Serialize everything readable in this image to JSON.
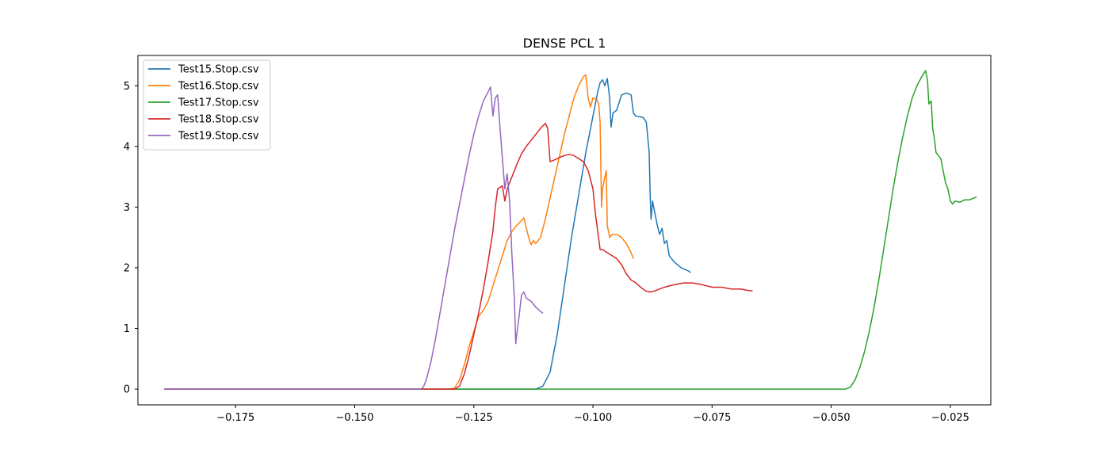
{
  "chart_data": {
    "type": "line",
    "title": "DENSE PCL 1",
    "xlabel": "",
    "ylabel": "",
    "xlim": [
      -0.1955,
      -0.0165
    ],
    "ylim": [
      -0.26,
      5.5
    ],
    "x_ticks": [
      -0.175,
      -0.15,
      -0.125,
      -0.1,
      -0.075,
      -0.05,
      -0.025
    ],
    "x_tick_labels": [
      "−0.175",
      "−0.150",
      "−0.125",
      "−0.100",
      "−0.075",
      "−0.050",
      "−0.025"
    ],
    "y_ticks": [
      0,
      1,
      2,
      3,
      4,
      5
    ],
    "y_tick_labels": [
      "0",
      "1",
      "2",
      "3",
      "4",
      "5"
    ],
    "grid": false,
    "legend_position": "top-left",
    "series": [
      {
        "name": "Test15.Stop.csv",
        "color": "#1f77b4",
        "points": [
          [
            -0.19,
            0
          ],
          [
            -0.112,
            0
          ],
          [
            -0.1105,
            0.05
          ],
          [
            -0.109,
            0.28
          ],
          [
            -0.1075,
            0.9
          ],
          [
            -0.106,
            1.7
          ],
          [
            -0.1045,
            2.5
          ],
          [
            -0.103,
            3.2
          ],
          [
            -0.1015,
            3.9
          ],
          [
            -0.1,
            4.5
          ],
          [
            -0.099,
            4.9
          ],
          [
            -0.0985,
            5.05
          ],
          [
            -0.098,
            5.1
          ],
          [
            -0.0975,
            5.0
          ],
          [
            -0.097,
            5.12
          ],
          [
            -0.0965,
            4.8
          ],
          [
            -0.0962,
            4.32
          ],
          [
            -0.0958,
            4.55
          ],
          [
            -0.095,
            4.6
          ],
          [
            -0.094,
            4.85
          ],
          [
            -0.093,
            4.88
          ],
          [
            -0.092,
            4.85
          ],
          [
            -0.0915,
            4.55
          ],
          [
            -0.091,
            4.5
          ],
          [
            -0.0895,
            4.48
          ],
          [
            -0.0888,
            4.4
          ],
          [
            -0.0882,
            3.9
          ],
          [
            -0.088,
            3.2
          ],
          [
            -0.0878,
            2.8
          ],
          [
            -0.0875,
            3.1
          ],
          [
            -0.087,
            2.9
          ],
          [
            -0.0865,
            2.7
          ],
          [
            -0.086,
            2.55
          ],
          [
            -0.0855,
            2.65
          ],
          [
            -0.085,
            2.4
          ],
          [
            -0.0845,
            2.45
          ],
          [
            -0.084,
            2.2
          ],
          [
            -0.083,
            2.1
          ],
          [
            -0.0815,
            2.0
          ],
          [
            -0.08,
            1.95
          ],
          [
            -0.0795,
            1.92
          ]
        ]
      },
      {
        "name": "Test16.Stop.csv",
        "color": "#ff7f0e",
        "points": [
          [
            -0.19,
            0
          ],
          [
            -0.13,
            0
          ],
          [
            -0.129,
            0.02
          ],
          [
            -0.128,
            0.15
          ],
          [
            -0.127,
            0.4
          ],
          [
            -0.126,
            0.7
          ],
          [
            -0.125,
            0.95
          ],
          [
            -0.124,
            1.2
          ],
          [
            -0.123,
            1.3
          ],
          [
            -0.122,
            1.45
          ],
          [
            -0.121,
            1.7
          ],
          [
            -0.12,
            1.95
          ],
          [
            -0.119,
            2.2
          ],
          [
            -0.118,
            2.45
          ],
          [
            -0.117,
            2.6
          ],
          [
            -0.116,
            2.7
          ],
          [
            -0.115,
            2.78
          ],
          [
            -0.1145,
            2.82
          ],
          [
            -0.1135,
            2.5
          ],
          [
            -0.113,
            2.38
          ],
          [
            -0.1125,
            2.45
          ],
          [
            -0.112,
            2.4
          ],
          [
            -0.111,
            2.5
          ],
          [
            -0.11,
            2.8
          ],
          [
            -0.109,
            3.15
          ],
          [
            -0.108,
            3.5
          ],
          [
            -0.107,
            3.85
          ],
          [
            -0.106,
            4.2
          ],
          [
            -0.105,
            4.5
          ],
          [
            -0.104,
            4.8
          ],
          [
            -0.103,
            5.0
          ],
          [
            -0.102,
            5.15
          ],
          [
            -0.1015,
            5.18
          ],
          [
            -0.101,
            4.8
          ],
          [
            -0.1005,
            4.65
          ],
          [
            -0.1,
            4.8
          ],
          [
            -0.0992,
            4.78
          ],
          [
            -0.0988,
            4.7
          ],
          [
            -0.0985,
            4.4
          ],
          [
            -0.0982,
            3.0
          ],
          [
            -0.098,
            3.3
          ],
          [
            -0.0975,
            3.5
          ],
          [
            -0.0972,
            3.6
          ],
          [
            -0.097,
            2.7
          ],
          [
            -0.0965,
            2.5
          ],
          [
            -0.096,
            2.55
          ],
          [
            -0.095,
            2.55
          ],
          [
            -0.094,
            2.5
          ],
          [
            -0.093,
            2.4
          ],
          [
            -0.092,
            2.25
          ],
          [
            -0.0915,
            2.15
          ]
        ]
      },
      {
        "name": "Test17.Stop.csv",
        "color": "#2ca02c",
        "points": [
          [
            -0.19,
            0
          ],
          [
            -0.047,
            0
          ],
          [
            -0.046,
            0.03
          ],
          [
            -0.045,
            0.15
          ],
          [
            -0.044,
            0.35
          ],
          [
            -0.043,
            0.62
          ],
          [
            -0.042,
            0.95
          ],
          [
            -0.041,
            1.35
          ],
          [
            -0.04,
            1.8
          ],
          [
            -0.039,
            2.3
          ],
          [
            -0.038,
            2.8
          ],
          [
            -0.037,
            3.3
          ],
          [
            -0.036,
            3.75
          ],
          [
            -0.035,
            4.15
          ],
          [
            -0.034,
            4.5
          ],
          [
            -0.033,
            4.8
          ],
          [
            -0.032,
            5.0
          ],
          [
            -0.031,
            5.15
          ],
          [
            -0.0302,
            5.25
          ],
          [
            -0.0298,
            5.1
          ],
          [
            -0.0295,
            4.7
          ],
          [
            -0.029,
            4.75
          ],
          [
            -0.0287,
            4.3
          ],
          [
            -0.0283,
            4.1
          ],
          [
            -0.028,
            3.9
          ],
          [
            -0.027,
            3.8
          ],
          [
            -0.0265,
            3.6
          ],
          [
            -0.026,
            3.4
          ],
          [
            -0.0255,
            3.3
          ],
          [
            -0.025,
            3.1
          ],
          [
            -0.0245,
            3.05
          ],
          [
            -0.024,
            3.1
          ],
          [
            -0.023,
            3.08
          ],
          [
            -0.022,
            3.12
          ],
          [
            -0.021,
            3.12
          ],
          [
            -0.02,
            3.15
          ],
          [
            -0.0195,
            3.17
          ]
        ]
      },
      {
        "name": "Test18.Stop.csv",
        "color": "#d62728",
        "points": [
          [
            -0.19,
            0
          ],
          [
            -0.129,
            0
          ],
          [
            -0.128,
            0.05
          ],
          [
            -0.127,
            0.25
          ],
          [
            -0.126,
            0.55
          ],
          [
            -0.125,
            0.9
          ],
          [
            -0.124,
            1.25
          ],
          [
            -0.123,
            1.65
          ],
          [
            -0.122,
            2.1
          ],
          [
            -0.121,
            2.6
          ],
          [
            -0.1205,
            3.0
          ],
          [
            -0.12,
            3.3
          ],
          [
            -0.119,
            3.35
          ],
          [
            -0.1185,
            3.1
          ],
          [
            -0.118,
            3.3
          ],
          [
            -0.117,
            3.5
          ],
          [
            -0.116,
            3.7
          ],
          [
            -0.115,
            3.88
          ],
          [
            -0.114,
            4.0
          ],
          [
            -0.113,
            4.1
          ],
          [
            -0.112,
            4.2
          ],
          [
            -0.111,
            4.3
          ],
          [
            -0.11,
            4.38
          ],
          [
            -0.1095,
            4.3
          ],
          [
            -0.109,
            3.75
          ],
          [
            -0.108,
            3.78
          ],
          [
            -0.107,
            3.82
          ],
          [
            -0.106,
            3.85
          ],
          [
            -0.105,
            3.87
          ],
          [
            -0.104,
            3.85
          ],
          [
            -0.103,
            3.8
          ],
          [
            -0.102,
            3.75
          ],
          [
            -0.101,
            3.6
          ],
          [
            -0.1,
            3.3
          ],
          [
            -0.0995,
            2.9
          ],
          [
            -0.099,
            2.6
          ],
          [
            -0.0985,
            2.3
          ],
          [
            -0.098,
            2.3
          ],
          [
            -0.097,
            2.25
          ],
          [
            -0.096,
            2.2
          ],
          [
            -0.095,
            2.15
          ],
          [
            -0.094,
            2.05
          ],
          [
            -0.093,
            1.9
          ],
          [
            -0.092,
            1.8
          ],
          [
            -0.091,
            1.75
          ],
          [
            -0.09,
            1.68
          ],
          [
            -0.089,
            1.62
          ],
          [
            -0.088,
            1.6
          ],
          [
            -0.087,
            1.62
          ],
          [
            -0.085,
            1.68
          ],
          [
            -0.083,
            1.72
          ],
          [
            -0.081,
            1.75
          ],
          [
            -0.079,
            1.75
          ],
          [
            -0.077,
            1.72
          ],
          [
            -0.075,
            1.68
          ],
          [
            -0.073,
            1.68
          ],
          [
            -0.071,
            1.65
          ],
          [
            -0.069,
            1.65
          ],
          [
            -0.067,
            1.62
          ],
          [
            -0.0665,
            1.62
          ]
        ]
      },
      {
        "name": "Test19.Stop.csv",
        "color": "#9467bd",
        "points": [
          [
            -0.19,
            0
          ],
          [
            -0.136,
            0
          ],
          [
            -0.1355,
            0.05
          ],
          [
            -0.135,
            0.15
          ],
          [
            -0.134,
            0.45
          ],
          [
            -0.133,
            0.85
          ],
          [
            -0.132,
            1.3
          ],
          [
            -0.131,
            1.75
          ],
          [
            -0.13,
            2.2
          ],
          [
            -0.129,
            2.65
          ],
          [
            -0.128,
            3.05
          ],
          [
            -0.127,
            3.45
          ],
          [
            -0.126,
            3.85
          ],
          [
            -0.125,
            4.2
          ],
          [
            -0.124,
            4.5
          ],
          [
            -0.123,
            4.75
          ],
          [
            -0.122,
            4.9
          ],
          [
            -0.1215,
            4.98
          ],
          [
            -0.121,
            4.5
          ],
          [
            -0.1205,
            4.8
          ],
          [
            -0.12,
            4.85
          ],
          [
            -0.1195,
            4.3
          ],
          [
            -0.119,
            3.8
          ],
          [
            -0.1185,
            3.3
          ],
          [
            -0.118,
            3.55
          ],
          [
            -0.1175,
            3.1
          ],
          [
            -0.117,
            2.2
          ],
          [
            -0.1165,
            1.5
          ],
          [
            -0.1162,
            0.75
          ],
          [
            -0.116,
            0.9
          ],
          [
            -0.1155,
            1.2
          ],
          [
            -0.115,
            1.55
          ],
          [
            -0.1145,
            1.6
          ],
          [
            -0.114,
            1.5
          ],
          [
            -0.113,
            1.45
          ],
          [
            -0.112,
            1.35
          ],
          [
            -0.111,
            1.28
          ],
          [
            -0.1105,
            1.25
          ]
        ]
      }
    ]
  }
}
